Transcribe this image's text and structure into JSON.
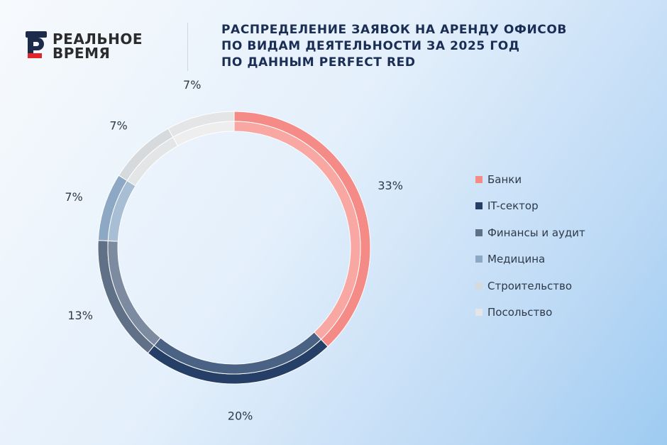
{
  "brand": {
    "line1": "РЕАЛЬНОЕ",
    "line2": "ВРЕМЯ",
    "logo_letter_color": "#1c2b4a",
    "logo_accent_color": "#e0262a",
    "icon": "logo-r-icon"
  },
  "title_lines": [
    "РАСПРЕДЕЛЕНИЕ ЗАЯВОК НА АРЕНДУ ОФИСОВ",
    "ПО ВИДАМ ДЕЯТЕЛЬНОСТИ ЗА 2025 ГОД",
    "ПО ДАННЫМ PERFECT RED"
  ],
  "chart_data": {
    "type": "pie",
    "donut": true,
    "categories": [
      "Банки",
      "IT-сектор",
      "Финансы и аудит",
      "Медицина",
      "Строительство",
      "Посольство"
    ],
    "values": [
      33,
      20,
      13,
      7,
      7,
      7
    ],
    "value_labels": [
      "33%",
      "20%",
      "13%",
      "7%",
      "7%",
      "7%"
    ],
    "colors": [
      "#f48b86",
      "#263f66",
      "#5f7087",
      "#8da8c4",
      "#d7dadd",
      "#e4e5e6"
    ],
    "inner_colors": [
      "#f9a7a2",
      "#4a6385",
      "#7d8ba0",
      "#a7bed4",
      "#e3e5e7",
      "#eeeeef"
    ],
    "start": "12 o'clock",
    "direction": "clockwise",
    "legend_position": "right"
  }
}
